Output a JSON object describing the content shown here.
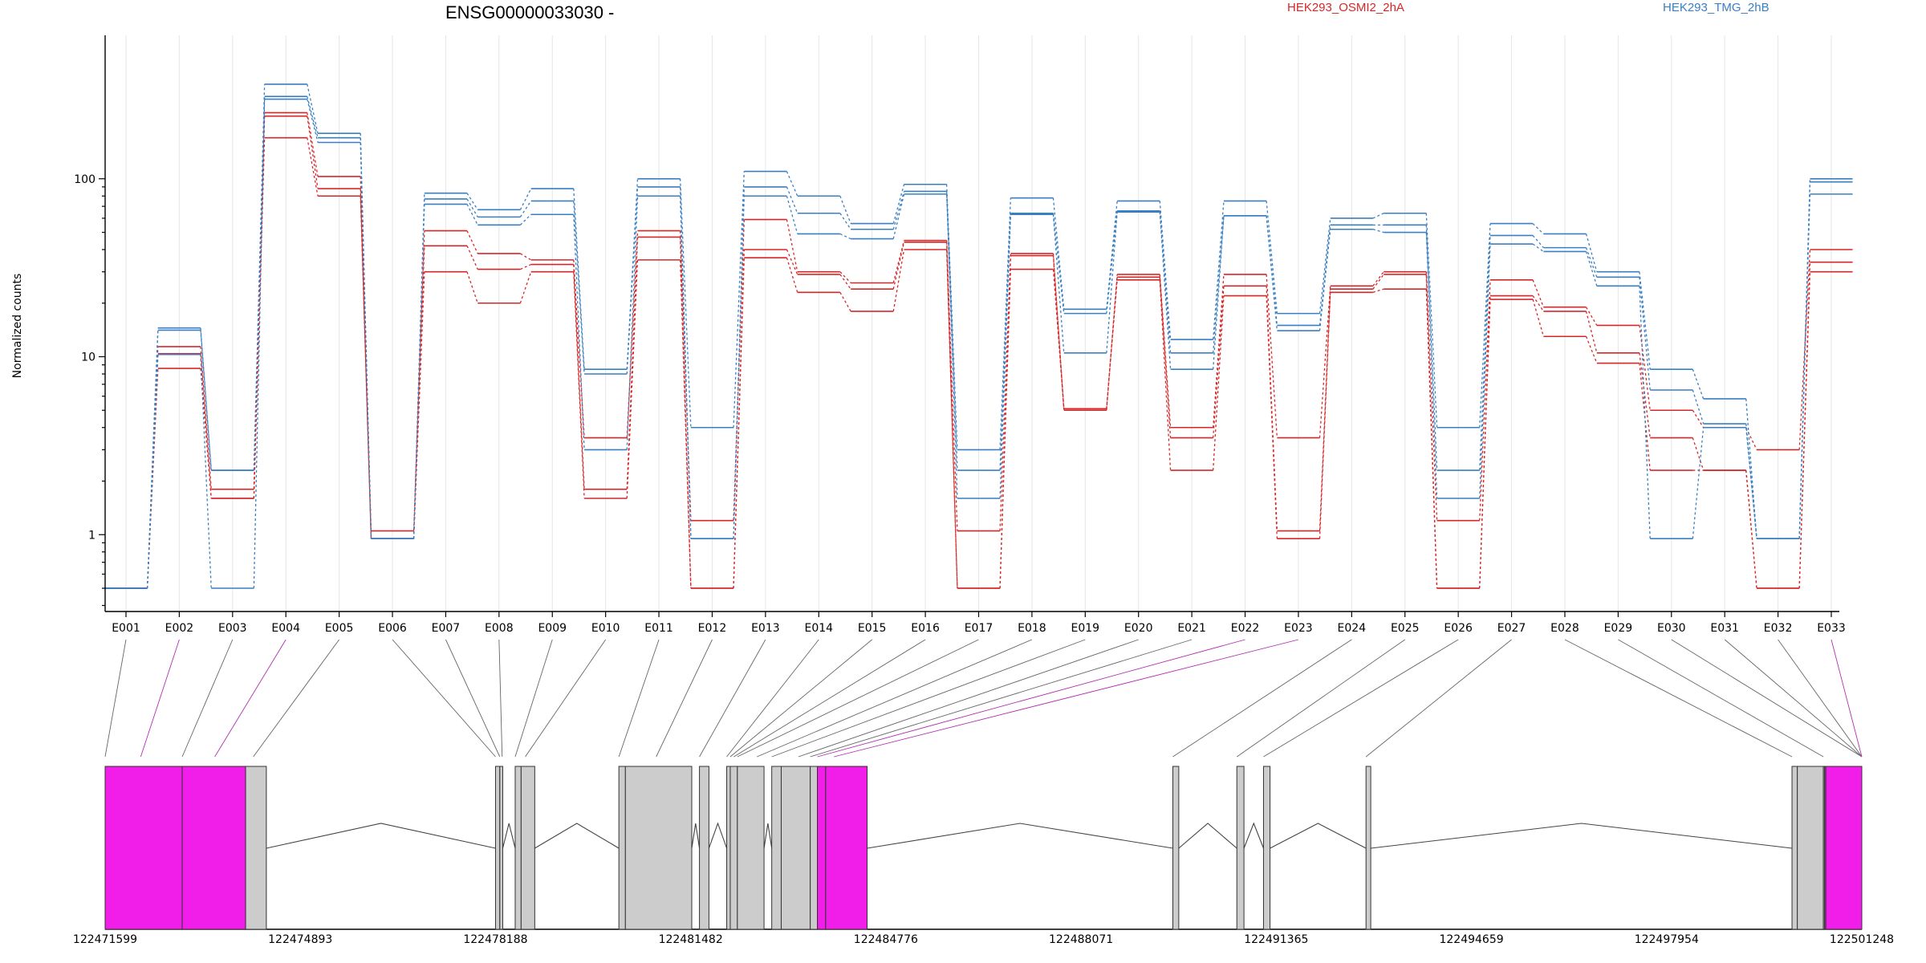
{
  "chart_data": {
    "type": "line",
    "title": "ENSG00000033030 -",
    "ylabel": "Normalized counts",
    "y_scale": "log",
    "ylim": [
      0.37,
      640
    ],
    "y_ticks": [
      {
        "value": 1,
        "label": "1"
      },
      {
        "value": 10,
        "label": "10"
      },
      {
        "value": 100,
        "label": "100"
      }
    ],
    "categories": [
      "E001",
      "E002",
      "E003",
      "E004",
      "E005",
      "E006",
      "E007",
      "E008",
      "E009",
      "E010",
      "E011",
      "E012",
      "E013",
      "E014",
      "E015",
      "E016",
      "E017",
      "E018",
      "E019",
      "E020",
      "E021",
      "E022",
      "E023",
      "E024",
      "E025",
      "E026",
      "E027",
      "E028",
      "E029",
      "E030",
      "E031",
      "E032",
      "E033"
    ],
    "legend": [
      {
        "label": "HEK293_OSMI2_2hA",
        "color": "#d62728"
      },
      {
        "label": "HEK293_TMG_2hB",
        "color": "#3a7fc1"
      }
    ],
    "series": [
      {
        "group": 0,
        "values": [
          0.5,
          11.4,
          1.8,
          235,
          103,
          1.05,
          51,
          38,
          35,
          3.5,
          51,
          1.2,
          59,
          30,
          26,
          45,
          1.05,
          38,
          5,
          29,
          4,
          29,
          3.5,
          25,
          30,
          1.2,
          27,
          19,
          15,
          5,
          4,
          3,
          40
        ]
      },
      {
        "group": 0,
        "values": [
          0.5,
          10.4,
          1.6,
          225,
          88,
          0.95,
          42,
          31,
          33,
          1.8,
          47,
          0.5,
          40,
          29,
          24,
          44,
          0.5,
          37,
          5.1,
          28,
          3.5,
          25,
          1.05,
          24,
          29,
          0.5,
          22,
          18,
          10.5,
          3.5,
          2.3,
          0.5,
          34
        ]
      },
      {
        "group": 0,
        "values": [
          0.5,
          8.6,
          1.6,
          170,
          80,
          0.95,
          30,
          20,
          30,
          1.6,
          35,
          0.5,
          36,
          23,
          18,
          40,
          0.5,
          31,
          5.1,
          27,
          2.3,
          22,
          0.95,
          23,
          24,
          0.5,
          21,
          13,
          9.2,
          2.3,
          2.3,
          0.5,
          30
        ]
      },
      {
        "group": 1,
        "values": [
          0.5,
          14.5,
          2.3,
          340,
          180,
          0.95,
          83,
          67,
          88,
          8.5,
          100,
          4,
          110,
          80,
          56,
          93,
          3,
          78,
          18.5,
          75,
          12.5,
          75,
          17.5,
          60,
          64,
          4,
          56,
          49,
          30,
          8.5,
          5.8,
          0.95,
          100
        ]
      },
      {
        "group": 1,
        "values": [
          0.5,
          14.1,
          2.3,
          290,
          170,
          0.95,
          77,
          61,
          75,
          8,
          90,
          0.95,
          90,
          64,
          52,
          85,
          2.3,
          64,
          17.5,
          66,
          10.5,
          62,
          15,
          55,
          55,
          2.3,
          48,
          41,
          28,
          6.5,
          4.2,
          0.95,
          96
        ]
      },
      {
        "group": 1,
        "values": [
          0.5,
          10.3,
          0.5,
          280,
          160,
          0.95,
          72,
          55,
          63,
          3,
          80,
          0.95,
          80,
          49,
          46,
          82,
          1.6,
          63,
          10.5,
          65,
          8.5,
          62,
          14,
          52,
          50,
          1.6,
          43,
          39,
          25,
          0.95,
          4,
          0.95,
          82
        ]
      }
    ],
    "gene_model": {
      "chromosome_ticks": [
        "122471599",
        "122474893",
        "122478188",
        "122481482",
        "122484776",
        "122488071",
        "122491365",
        "122494659",
        "122497954",
        "122501248"
      ],
      "exons": [
        {
          "start": 122471599,
          "end": 122472900,
          "highlight": true
        },
        {
          "start": 122472900,
          "end": 122473970,
          "highlight": true
        },
        {
          "start": 122473970,
          "end": 122474320,
          "highlight": false
        },
        {
          "start": 122478188,
          "end": 122478260,
          "highlight": false
        },
        {
          "start": 122478260,
          "end": 122478310,
          "highlight": false
        },
        {
          "start": 122478520,
          "end": 122478620,
          "highlight": false
        },
        {
          "start": 122478620,
          "end": 122478850,
          "highlight": false
        },
        {
          "start": 122480270,
          "end": 122480380,
          "highlight": false
        },
        {
          "start": 122480380,
          "end": 122481500,
          "highlight": false
        },
        {
          "start": 122481630,
          "end": 122481790,
          "highlight": false
        },
        {
          "start": 122482090,
          "end": 122482150,
          "highlight": false
        },
        {
          "start": 122482150,
          "end": 122482270,
          "highlight": false
        },
        {
          "start": 122482270,
          "end": 122482720,
          "highlight": false
        },
        {
          "start": 122482850,
          "end": 122483010,
          "highlight": false
        },
        {
          "start": 122483010,
          "end": 122483500,
          "highlight": false
        },
        {
          "start": 122483500,
          "end": 122483620,
          "highlight": false
        },
        {
          "start": 122483620,
          "end": 122483760,
          "highlight": true
        },
        {
          "start": 122483760,
          "end": 122484460,
          "highlight": true
        },
        {
          "start": 122489620,
          "end": 122489720,
          "highlight": false
        },
        {
          "start": 122490700,
          "end": 122490820,
          "highlight": false
        },
        {
          "start": 122491150,
          "end": 122491260,
          "highlight": false
        },
        {
          "start": 122492880,
          "end": 122492960,
          "highlight": false
        },
        {
          "start": 122500070,
          "end": 122500160,
          "highlight": false
        },
        {
          "start": 122500160,
          "end": 122500600,
          "highlight": false
        },
        {
          "start": 122500600,
          "end": 122500620,
          "highlight": false
        },
        {
          "start": 122500620,
          "end": 122500640,
          "highlight": true
        },
        {
          "start": 122500640,
          "end": 122501248,
          "highlight": true
        }
      ],
      "connector_targets": [
        {
          "exon": "E001",
          "pos": 122471599,
          "highlight": false
        },
        {
          "exon": "E002",
          "pos": 122472200,
          "highlight": true
        },
        {
          "exon": "E003",
          "pos": 122472900,
          "highlight": false
        },
        {
          "exon": "E004",
          "pos": 122473450,
          "highlight": true
        },
        {
          "exon": "E005",
          "pos": 122474100,
          "highlight": false
        },
        {
          "exon": "E006",
          "pos": 122478188,
          "highlight": false
        },
        {
          "exon": "E007",
          "pos": 122478260,
          "highlight": false
        },
        {
          "exon": "E008",
          "pos": 122478300,
          "highlight": false
        },
        {
          "exon": "E009",
          "pos": 122478520,
          "highlight": false
        },
        {
          "exon": "E010",
          "pos": 122478690,
          "highlight": false
        },
        {
          "exon": "E011",
          "pos": 122480270,
          "highlight": false
        },
        {
          "exon": "E012",
          "pos": 122480900,
          "highlight": false
        },
        {
          "exon": "E013",
          "pos": 122481630,
          "highlight": false
        },
        {
          "exon": "E014",
          "pos": 122482090,
          "highlight": false
        },
        {
          "exon": "E015",
          "pos": 122482150,
          "highlight": false
        },
        {
          "exon": "E016",
          "pos": 122482210,
          "highlight": false
        },
        {
          "exon": "E017",
          "pos": 122482270,
          "highlight": false
        },
        {
          "exon": "E018",
          "pos": 122482600,
          "highlight": false
        },
        {
          "exon": "E019",
          "pos": 122482850,
          "highlight": false
        },
        {
          "exon": "E020",
          "pos": 122483300,
          "highlight": false
        },
        {
          "exon": "E021",
          "pos": 122483500,
          "highlight": false
        },
        {
          "exon": "E022",
          "pos": 122483620,
          "highlight": true
        },
        {
          "exon": "E023",
          "pos": 122483900,
          "highlight": true
        },
        {
          "exon": "E024",
          "pos": 122489620,
          "highlight": false
        },
        {
          "exon": "E025",
          "pos": 122490700,
          "highlight": false
        },
        {
          "exon": "E026",
          "pos": 122491150,
          "highlight": false
        },
        {
          "exon": "E027",
          "pos": 122492880,
          "highlight": false
        },
        {
          "exon": "E028",
          "pos": 122500070,
          "highlight": false
        },
        {
          "exon": "E029",
          "pos": 122500600,
          "highlight": false
        },
        {
          "exon": "E030",
          "pos": 122501280,
          "highlight": false
        },
        {
          "exon": "E031",
          "pos": 122501680,
          "highlight": false
        },
        {
          "exon": "E032",
          "pos": 122501248,
          "highlight": false
        },
        {
          "exon": "E033",
          "pos": 122501248,
          "highlight": true
        }
      ]
    }
  }
}
